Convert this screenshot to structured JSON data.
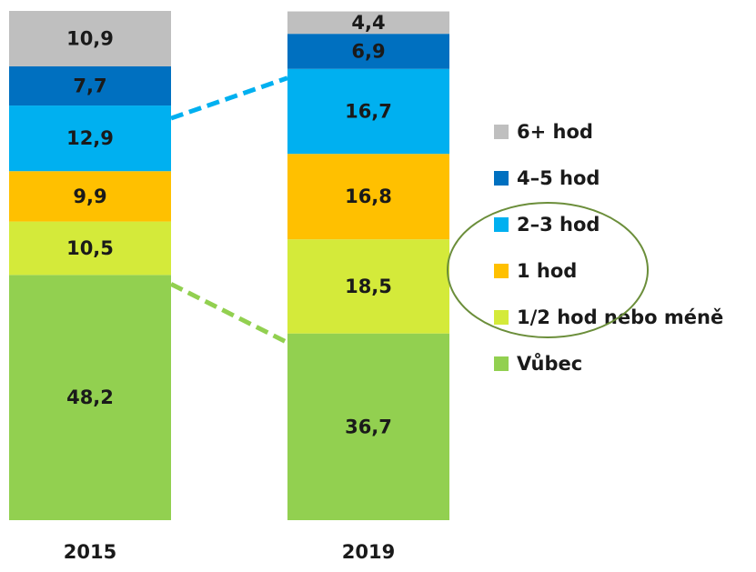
{
  "chart_data": {
    "type": "stacked_bar",
    "categories": [
      "2015",
      "2019"
    ],
    "series": [
      {
        "name": "Vůbec",
        "color": "#92d050",
        "values": [
          48.2,
          36.7
        ],
        "value_labels": [
          "48,2",
          "36,7"
        ]
      },
      {
        "name": "1/2 hod nebo méně",
        "color": "#d4ea3a",
        "values": [
          10.5,
          18.5
        ],
        "value_labels": [
          "10,5",
          "18,5"
        ]
      },
      {
        "name": "1 hod",
        "color": "#ffc000",
        "values": [
          9.9,
          16.8
        ],
        "value_labels": [
          "9,9",
          "16,8"
        ]
      },
      {
        "name": "2–3 hod",
        "color": "#00b0f0",
        "values": [
          12.9,
          16.7
        ],
        "value_labels": [
          "12,9",
          "16,7"
        ]
      },
      {
        "name": "4–5 hod",
        "color": "#0070c0",
        "values": [
          7.7,
          6.9
        ],
        "value_labels": [
          "7,7",
          "6,9"
        ]
      },
      {
        "name": "6+ hod",
        "color": "#bfbfbf",
        "values": [
          10.9,
          4.4
        ],
        "value_labels": [
          "10,9",
          "4,4"
        ]
      }
    ]
  }
}
